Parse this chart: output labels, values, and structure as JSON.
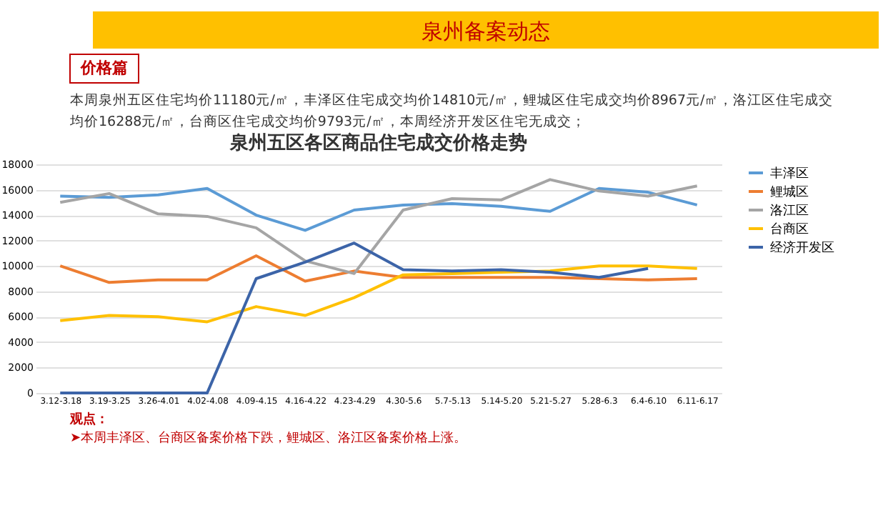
{
  "chart_data": {
    "type": "line",
    "title": "泉州五区各区商品住宅成交价格走势",
    "annotations": [
      "泉州备案动态",
      "价格篇",
      "本周泉州五区住宅均价11180元/㎡，丰泽区住宅成交均价14810元/㎡，鲤城区住宅成交均价8967元/㎡，洛江区住宅成交",
      "均价16288元/㎡，台商区住宅成交均价9793元/㎡，本周经济开发区住宅无成交；",
      "观点：",
      "➤本周丰泽区、台商区备案价格下跌，鲤城区、洛江区备案价格上涨。"
    ],
    "categories": [
      "3.12-3.18",
      "3.19-3.25",
      "3.26-4.01",
      "4.02-4.08",
      "4.09-4.15",
      "4.16-4.22",
      "4.23-4.29",
      "4.30-5.6",
      "5.7-5.13",
      "5.14-5.20",
      "5.21-5.27",
      "5.28-6.3",
      "6.4-6.10",
      "6.11-6.17"
    ],
    "series": [
      {
        "name": "丰泽区",
        "color": "#5b9bd5",
        "values": [
          15500,
          15400,
          15600,
          16100,
          14000,
          12800,
          14400,
          14800,
          14900,
          14700,
          14300,
          16100,
          15800,
          14800
        ]
      },
      {
        "name": "鲤城区",
        "color": "#ed7d31",
        "values": [
          10000,
          8700,
          8900,
          8900,
          10800,
          8800,
          9600,
          9100,
          9100,
          9100,
          9100,
          9000,
          8900,
          9000
        ]
      },
      {
        "name": "洛江区",
        "color": "#a5a5a5",
        "values": [
          15000,
          15700,
          14100,
          13900,
          13000,
          10400,
          9400,
          14400,
          15300,
          15200,
          16800,
          15900,
          15500,
          16300
        ]
      },
      {
        "name": "台商区",
        "color": "#ffc000",
        "values": [
          5700,
          6100,
          6000,
          5600,
          6800,
          6100,
          7500,
          9300,
          9400,
          9500,
          9600,
          10000,
          10000,
          9800
        ]
      },
      {
        "name": "经济开发区",
        "color": "#3c64a8",
        "values": [
          0,
          0,
          0,
          0,
          9000,
          10300,
          11800,
          9700,
          9600,
          9700,
          9500,
          9100,
          9800,
          null
        ]
      }
    ],
    "ylim": [
      0,
      18000
    ],
    "yticks": [
      0,
      2000,
      4000,
      6000,
      8000,
      10000,
      12000,
      14000,
      16000,
      18000
    ],
    "grid": "y",
    "legend": "right",
    "marker": "none",
    "line_style": "solid"
  }
}
